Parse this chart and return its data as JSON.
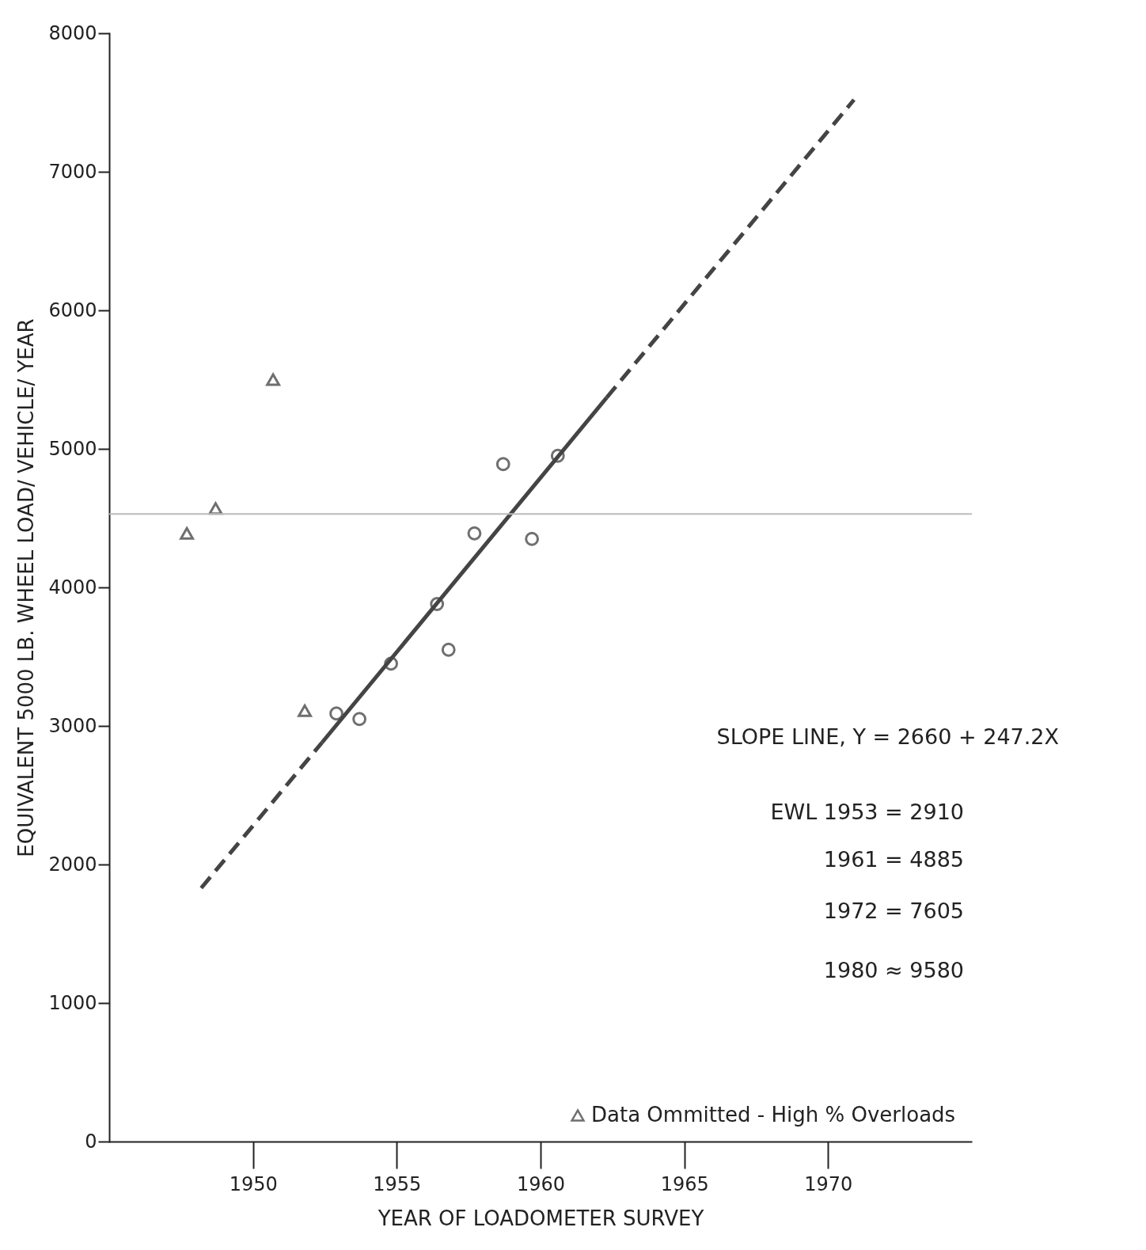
{
  "chart_data": {
    "type": "scatter",
    "xlabel": "YEAR OF LOADOMETER SURVEY",
    "ylabel": "EQUIVALENT 5000 LB. WHEEL LOAD/ VEHICLE/ YEAR",
    "xlim": [
      1945,
      1975
    ],
    "xticks": [
      1950,
      1955,
      1960,
      1965,
      1970
    ],
    "ylim": [
      0,
      8000
    ],
    "yticks": [
      0,
      1000,
      2000,
      3000,
      4000,
      5000,
      6000,
      7000,
      8000
    ],
    "grid": false,
    "legend": "bottom right",
    "series": [
      {
        "marker": "circle",
        "color": "#333333",
        "x": [
          1952.9,
          1953.7,
          1954.8,
          1956.4,
          1956.8,
          1957.7,
          1958.7,
          1959.7,
          1960.6
        ],
        "values": [
          3090,
          3050,
          3450,
          3880,
          3550,
          4390,
          4890,
          4350,
          4950
        ]
      },
      {
        "marker": "triangle",
        "name": "Data Ommitted - High % Overloads",
        "color": "#333333",
        "x": [
          1947.7,
          1948.7,
          1950.7,
          1951.8
        ],
        "values": [
          4390,
          4570,
          5500,
          3110
        ]
      },
      {
        "type": "line",
        "line_style": "dashed",
        "color": "#444444",
        "x": [
          1948.2,
          1952.4
        ],
        "values": [
          1830,
          2880
        ]
      },
      {
        "type": "line",
        "line_style": "solid",
        "color": "#444444",
        "x": [
          1952.4,
          1962.3
        ],
        "values": [
          2880,
          5370
        ]
      },
      {
        "type": "line",
        "line_style": "dashed",
        "color": "#444444",
        "x": [
          1962.3,
          1970.9
        ],
        "values": [
          5370,
          7520
        ]
      }
    ],
    "ref_lines": [
      {
        "axis": "y",
        "value": 4530,
        "color": "#bbbbbb",
        "line_style": "solid"
      }
    ],
    "annotations": [
      "SLOPE LINE, Y = 2660 + 247.2X",
      "EWL 1953 = 2910",
      "1961 = 4885",
      "1972 = 7605",
      "1980 ≈ 9580"
    ]
  }
}
